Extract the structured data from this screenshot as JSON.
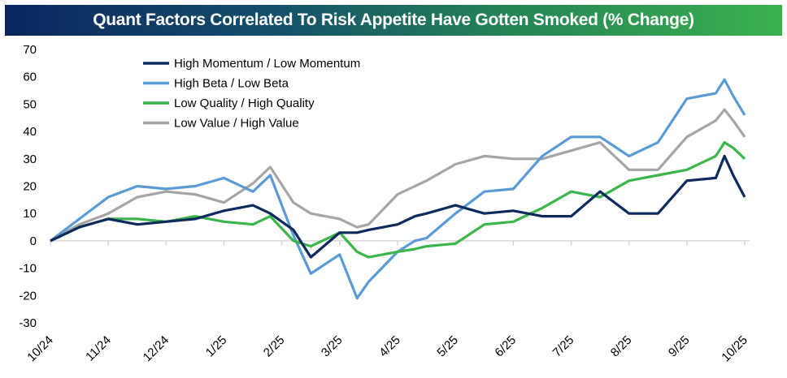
{
  "chart_data": {
    "type": "line",
    "title": "Quant Factors Correlated To Risk Appetite Have Gotten Smoked (% Change)",
    "xlabel": "",
    "ylabel": "",
    "ylim": [
      -30,
      70
    ],
    "yticks": [
      70,
      60,
      50,
      40,
      30,
      20,
      10,
      0,
      -10,
      -20,
      -30
    ],
    "xtick_labels": [
      "10/24",
      "11/24",
      "12/24",
      "1/25",
      "2/25",
      "3/25",
      "4/25",
      "5/25",
      "6/25",
      "7/25",
      "8/25",
      "9/25",
      "10/25"
    ],
    "x_units": "months since 10/24",
    "x": [
      0,
      0.5,
      1,
      1.5,
      2,
      2.5,
      3,
      3.5,
      3.8,
      4.2,
      4.5,
      5,
      5.3,
      5.5,
      6,
      6.3,
      6.5,
      7,
      7.5,
      8,
      8.5,
      9,
      9.5,
      10,
      10.5,
      11,
      11.5,
      11.65,
      11.8,
      12
    ],
    "legend_position": "top-left",
    "grid": false,
    "series": [
      {
        "name": "High Momentum / Low Momentum",
        "color": "#0d2a5e",
        "values": [
          0,
          5,
          8,
          6,
          7,
          8,
          11,
          13,
          10,
          4,
          -6,
          3,
          3,
          4,
          6,
          9,
          10,
          13,
          10,
          11,
          9,
          9,
          18,
          10,
          10,
          22,
          23,
          31,
          24,
          16
        ]
      },
      {
        "name": "High Beta / Low Beta",
        "color": "#5b9bd5",
        "values": [
          0,
          8,
          16,
          20,
          19,
          20,
          23,
          18,
          24,
          2,
          -12,
          -5,
          -21,
          -15,
          -4,
          0,
          1,
          10,
          18,
          19,
          31,
          38,
          38,
          31,
          36,
          52,
          54,
          59,
          53,
          46
        ]
      },
      {
        "name": "Low Quality / High Quality",
        "color": "#3cb54a",
        "values": [
          0,
          5,
          8,
          8,
          7,
          9,
          7,
          6,
          9,
          0,
          -2,
          3,
          -4,
          -6,
          -4,
          -3,
          -2,
          -1,
          6,
          7,
          12,
          18,
          16,
          22,
          24,
          26,
          31,
          36,
          34,
          30
        ]
      },
      {
        "name": "Low Value / High Value",
        "color": "#a6a6a6",
        "values": [
          0,
          6,
          10,
          16,
          18,
          17,
          14,
          21,
          27,
          14,
          10,
          8,
          5,
          6,
          17,
          20,
          22,
          28,
          31,
          30,
          30,
          33,
          36,
          26,
          26,
          38,
          44,
          48,
          44,
          38
        ]
      }
    ]
  }
}
